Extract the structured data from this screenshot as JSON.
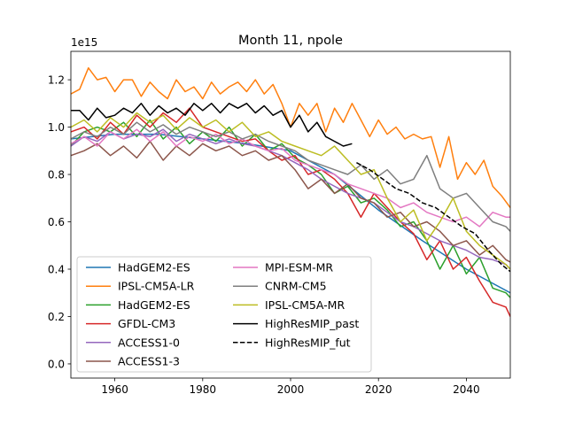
{
  "chart_data": {
    "type": "line",
    "title": "Month 11, npole",
    "scale_label": "1e15",
    "xlabel": "",
    "ylabel": "",
    "xlim": [
      1950,
      2050
    ],
    "ylim": [
      -60000000000000.0,
      1320000000000000.0
    ],
    "xticks": [
      1960,
      1980,
      2000,
      2020,
      2040
    ],
    "xtick_labels": [
      "1960",
      "1980",
      "2000",
      "2020",
      "2040"
    ],
    "yticks": [
      0.0,
      0.2,
      0.4,
      0.6,
      0.8,
      1.0,
      1.2
    ],
    "ytick_labels": [
      "0.0",
      "0.2",
      "0.4",
      "0.6",
      "0.8",
      "1.0",
      "1.2"
    ],
    "grid": false,
    "legend_placement": "lower-left",
    "series": [
      {
        "name": "HadGEM2-ES",
        "color": "#1f77b4",
        "dash": "solid",
        "x": [
          1950,
          1960,
          1970,
          1980,
          1990,
          2000,
          2010,
          2020,
          2030,
          2040,
          2050
        ],
        "values": [
          0.95,
          0.97,
          0.97,
          0.95,
          0.93,
          0.9,
          0.8,
          0.65,
          0.52,
          0.4,
          0.3
        ]
      },
      {
        "name": "IPSL-CM5A-LR",
        "color": "#ff7f0e",
        "dash": "solid",
        "x": [
          1950,
          1952,
          1954,
          1956,
          1958,
          1960,
          1962,
          1964,
          1966,
          1968,
          1970,
          1972,
          1974,
          1976,
          1978,
          1980,
          1982,
          1984,
          1986,
          1988,
          1990,
          1992,
          1994,
          1996,
          1998,
          2000,
          2002,
          2004,
          2006,
          2008,
          2010,
          2012,
          2014,
          2016,
          2018,
          2020,
          2022,
          2024,
          2026,
          2028,
          2030,
          2032,
          2034,
          2036,
          2038,
          2040,
          2042,
          2044,
          2046,
          2048,
          2050
        ],
        "values": [
          1.14,
          1.16,
          1.25,
          1.2,
          1.21,
          1.15,
          1.2,
          1.2,
          1.13,
          1.19,
          1.15,
          1.12,
          1.2,
          1.15,
          1.17,
          1.12,
          1.19,
          1.14,
          1.17,
          1.19,
          1.15,
          1.2,
          1.14,
          1.18,
          1.1,
          1.0,
          1.1,
          1.05,
          1.1,
          0.98,
          1.08,
          1.02,
          1.1,
          1.03,
          0.96,
          1.03,
          0.97,
          1.0,
          0.95,
          0.97,
          0.95,
          0.96,
          0.83,
          0.96,
          0.78,
          0.85,
          0.8,
          0.86,
          0.75,
          0.71,
          0.66
        ]
      },
      {
        "name": "HadGEM2-ES",
        "color": "#2ca02c",
        "dash": "solid",
        "x": [
          1950,
          1953,
          1956,
          1959,
          1962,
          1965,
          1968,
          1971,
          1974,
          1977,
          1980,
          1983,
          1986,
          1989,
          1992,
          1995,
          1998,
          2001,
          2004,
          2007,
          2010,
          2013,
          2016,
          2019,
          2022,
          2025,
          2028,
          2031,
          2034,
          2037,
          2040,
          2043,
          2046,
          2049,
          2050
        ],
        "values": [
          0.92,
          0.98,
          1.0,
          0.98,
          1.02,
          0.96,
          1.03,
          0.95,
          1.0,
          0.93,
          0.98,
          0.94,
          1.0,
          0.92,
          0.97,
          0.9,
          0.93,
          0.87,
          0.84,
          0.8,
          0.72,
          0.75,
          0.68,
          0.7,
          0.65,
          0.58,
          0.6,
          0.52,
          0.4,
          0.5,
          0.38,
          0.45,
          0.32,
          0.3,
          0.28
        ]
      },
      {
        "name": "GFDL-CM3",
        "color": "#d62728",
        "dash": "solid",
        "x": [
          1950,
          1953,
          1956,
          1959,
          1962,
          1965,
          1968,
          1971,
          1974,
          1977,
          1980,
          1983,
          1986,
          1989,
          1992,
          1995,
          1998,
          2001,
          2004,
          2007,
          2010,
          2013,
          2016,
          2019,
          2022,
          2025,
          2028,
          2031,
          2034,
          2037,
          2040,
          2043,
          2046,
          2049,
          2050
        ],
        "values": [
          0.98,
          1.0,
          0.95,
          1.02,
          0.97,
          1.05,
          1.0,
          1.06,
          1.02,
          1.08,
          1.0,
          0.98,
          0.96,
          0.94,
          0.95,
          0.9,
          0.86,
          0.88,
          0.8,
          0.82,
          0.78,
          0.72,
          0.62,
          0.72,
          0.66,
          0.6,
          0.55,
          0.44,
          0.52,
          0.4,
          0.45,
          0.35,
          0.26,
          0.24,
          0.2
        ]
      },
      {
        "name": "ACCESS1-0",
        "color": "#9467bd",
        "dash": "solid",
        "x": [
          1950,
          1953,
          1956,
          1959,
          1962,
          1965,
          1968,
          1971,
          1974,
          1977,
          1980,
          1983,
          1986,
          1989,
          1992,
          1995,
          1998,
          2001,
          2004,
          2007,
          2010,
          2013,
          2016,
          2019,
          2022,
          2025,
          2028,
          2031,
          2034,
          2037,
          2040,
          2043,
          2046,
          2049,
          2050
        ],
        "values": [
          0.92,
          0.96,
          0.94,
          0.98,
          0.95,
          0.97,
          0.96,
          0.99,
          0.94,
          0.97,
          0.95,
          0.93,
          0.95,
          0.93,
          0.92,
          0.9,
          0.88,
          0.85,
          0.82,
          0.78,
          0.75,
          0.72,
          0.7,
          0.68,
          0.64,
          0.6,
          0.58,
          0.55,
          0.52,
          0.5,
          0.48,
          0.45,
          0.44,
          0.42,
          0.4
        ]
      },
      {
        "name": "ACCESS1-3",
        "color": "#8c564b",
        "dash": "solid",
        "x": [
          1950,
          1953,
          1956,
          1959,
          1962,
          1965,
          1968,
          1971,
          1974,
          1977,
          1980,
          1983,
          1986,
          1989,
          1992,
          1995,
          1998,
          2001,
          2004,
          2007,
          2010,
          2013,
          2016,
          2019,
          2022,
          2025,
          2028,
          2031,
          2034,
          2037,
          2040,
          2043,
          2046,
          2049,
          2050
        ],
        "values": [
          0.88,
          0.9,
          0.93,
          0.88,
          0.92,
          0.87,
          0.94,
          0.86,
          0.92,
          0.88,
          0.93,
          0.9,
          0.92,
          0.88,
          0.9,
          0.86,
          0.88,
          0.82,
          0.74,
          0.78,
          0.72,
          0.76,
          0.7,
          0.68,
          0.62,
          0.64,
          0.58,
          0.6,
          0.56,
          0.5,
          0.52,
          0.46,
          0.5,
          0.44,
          0.43
        ]
      },
      {
        "name": "MPI-ESM-MR",
        "color": "#e377c2",
        "dash": "solid",
        "x": [
          1950,
          1953,
          1956,
          1959,
          1962,
          1965,
          1968,
          1971,
          1974,
          1977,
          1980,
          1983,
          1986,
          1989,
          1992,
          1995,
          1998,
          2001,
          2004,
          2007,
          2010,
          2013,
          2016,
          2019,
          2022,
          2025,
          2028,
          2031,
          2034,
          2037,
          2040,
          2043,
          2046,
          2049,
          2050
        ],
        "values": [
          0.93,
          0.96,
          0.92,
          0.98,
          0.95,
          0.99,
          0.94,
          0.98,
          0.92,
          0.96,
          0.94,
          0.97,
          0.93,
          0.95,
          0.92,
          0.9,
          0.91,
          0.86,
          0.84,
          0.82,
          0.8,
          0.76,
          0.74,
          0.72,
          0.7,
          0.66,
          0.68,
          0.64,
          0.62,
          0.6,
          0.62,
          0.58,
          0.64,
          0.62,
          0.62
        ]
      },
      {
        "name": "CNRM-CM5",
        "color": "#7f7f7f",
        "dash": "solid",
        "x": [
          1950,
          1953,
          1956,
          1959,
          1962,
          1965,
          1968,
          1971,
          1974,
          1977,
          1980,
          1983,
          1986,
          1989,
          1992,
          1995,
          1998,
          2001,
          2004,
          2007,
          2010,
          2013,
          2016,
          2019,
          2022,
          2025,
          2028,
          2031,
          2034,
          2037,
          2040,
          2043,
          2046,
          2049,
          2050
        ],
        "values": [
          0.95,
          0.98,
          0.96,
          1.0,
          0.97,
          1.02,
          0.98,
          1.01,
          0.97,
          1.0,
          0.98,
          0.96,
          0.98,
          0.95,
          0.97,
          0.94,
          0.92,
          0.9,
          0.86,
          0.84,
          0.82,
          0.8,
          0.84,
          0.78,
          0.82,
          0.76,
          0.78,
          0.88,
          0.74,
          0.7,
          0.72,
          0.66,
          0.6,
          0.58,
          0.56
        ]
      },
      {
        "name": "IPSL-CM5A-MR",
        "color": "#bcbd22",
        "dash": "solid",
        "x": [
          1950,
          1953,
          1956,
          1959,
          1962,
          1965,
          1968,
          1971,
          1974,
          1977,
          1980,
          1983,
          1986,
          1989,
          1992,
          1995,
          1998,
          2001,
          2004,
          2007,
          2010,
          2013,
          2016,
          2019,
          2022,
          2025,
          2028,
          2031,
          2034,
          2037,
          2040,
          2043,
          2046,
          2049,
          2050
        ],
        "values": [
          1.0,
          1.03,
          0.98,
          1.04,
          1.0,
          1.06,
          1.02,
          1.05,
          0.99,
          1.04,
          1.0,
          1.03,
          0.98,
          1.02,
          0.96,
          0.98,
          0.94,
          0.92,
          0.9,
          0.88,
          0.92,
          0.86,
          0.8,
          0.82,
          0.7,
          0.6,
          0.65,
          0.52,
          0.6,
          0.7,
          0.56,
          0.5,
          0.46,
          0.42,
          0.4
        ]
      },
      {
        "name": "HighResMIP_past",
        "color": "#000000",
        "dash": "solid",
        "x": [
          1950,
          1952,
          1954,
          1956,
          1958,
          1960,
          1962,
          1964,
          1966,
          1968,
          1970,
          1972,
          1974,
          1976,
          1978,
          1980,
          1982,
          1984,
          1986,
          1988,
          1990,
          1992,
          1994,
          1996,
          1998,
          2000,
          2002,
          2004,
          2006,
          2008,
          2010,
          2012,
          2014
        ],
        "values": [
          1.07,
          1.07,
          1.03,
          1.08,
          1.04,
          1.05,
          1.08,
          1.06,
          1.1,
          1.05,
          1.09,
          1.06,
          1.08,
          1.05,
          1.1,
          1.07,
          1.1,
          1.06,
          1.1,
          1.08,
          1.1,
          1.06,
          1.09,
          1.05,
          1.07,
          1.0,
          1.05,
          0.98,
          1.02,
          0.96,
          0.94,
          0.92,
          0.93
        ]
      },
      {
        "name": "HighResMIP_fut",
        "color": "#000000",
        "dash": "dashed",
        "x": [
          2015,
          2018,
          2021,
          2024,
          2027,
          2030,
          2033,
          2036,
          2039,
          2042,
          2045,
          2048,
          2050
        ],
        "values": [
          0.85,
          0.82,
          0.78,
          0.74,
          0.72,
          0.68,
          0.66,
          0.62,
          0.58,
          0.55,
          0.48,
          0.42,
          0.39
        ]
      }
    ]
  }
}
